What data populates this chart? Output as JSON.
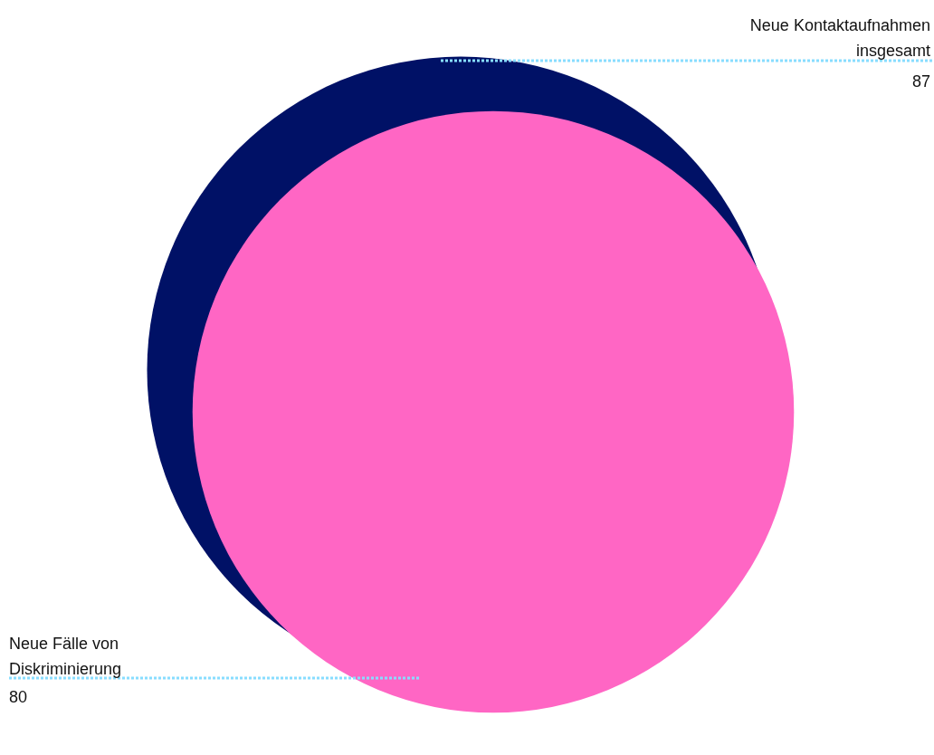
{
  "chart_data": {
    "type": "other",
    "categories": [
      "Neue Kontaktaufnahmen insgesamt",
      "Neue Fälle von Diskriminierung"
    ],
    "values": [
      87,
      80
    ],
    "colors": [
      "#001166",
      "#ff66c4"
    ],
    "data_labels": true
  }
}
